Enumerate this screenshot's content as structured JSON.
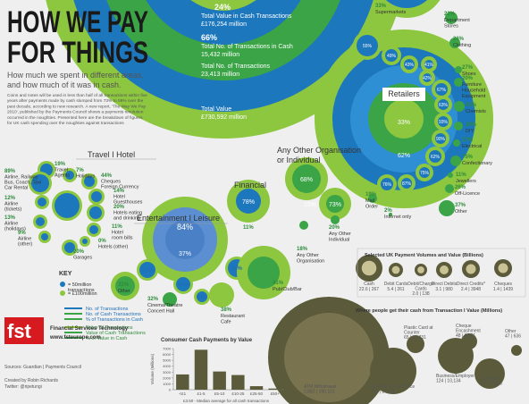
{
  "header": {
    "title_line1": "HOW WE PAY",
    "title_line2": "FOR THINGS",
    "subtitle_line1": "How much we spent in different areas,",
    "subtitle_line2": "and how much of it was in cash.",
    "body": [
      "Coins and notes will be used in less than half of all transactions within five",
      "years after payments made by cash slumped from 73% to 59% over the",
      "past decade, according to new research. A new report, 'The Way We Pay",
      "2010', published by the Payments Council shows a payments revolution",
      "occurred in the noughties. Presented here are the breakdown of figures",
      "for UK cash spending over the noughties against transactions"
    ]
  },
  "totals": {
    "cash_value_pct": "24%",
    "cash_value_label": "Total Value in Cash Transactions",
    "cash_value": "£176,254 million",
    "cash_no_pct": "66%",
    "cash_no_label": "Total No. of Transactions in Cash",
    "cash_no": "15,432 million",
    "total_no_label": "Total No. of Transactions",
    "total_no": "23,413 million",
    "total_value_label": "Total Value",
    "total_value": "£730,592 million"
  },
  "retail": {
    "title": "Retailers",
    "center": [
      "33%",
      "62%"
    ],
    "items": [
      {
        "pct": "33%",
        "label": [
          "Supermarkets"
        ]
      },
      {
        "pct": "22%",
        "label": [
          "Department",
          "Stores"
        ]
      },
      {
        "pct": "26%",
        "label": [
          "Clothing"
        ]
      },
      {
        "pct": "27%",
        "label": [
          "Shoes"
        ]
      },
      {
        "pct": "20%",
        "label": [
          "Furniture",
          "Household",
          "Equipment"
        ]
      },
      {
        "pct": "43%",
        "label": [
          "Chemists"
        ]
      },
      {
        "pct": "29%",
        "label": [
          "DIY"
        ]
      },
      {
        "pct": "17%",
        "label": [
          "Electrical"
        ]
      },
      {
        "pct": "75%",
        "label": [
          "Confectionary"
        ]
      },
      {
        "pct": "11%",
        "label": [
          "Jewellers"
        ]
      },
      {
        "pct": "26%",
        "label": [
          "Off-Licence"
        ]
      },
      {
        "pct": "37%",
        "label": [
          "Other"
        ]
      },
      {
        "pct": "19%",
        "label": [
          "Mail",
          "Order"
        ]
      },
      {
        "pct": "2%",
        "label": [
          "Internet only"
        ]
      }
    ],
    "inner": [
      "55%",
      "49%",
      "43%",
      "41%",
      "42%",
      "67%",
      "63%",
      "93%",
      "90%",
      "62%",
      "75%",
      "87%",
      "76%"
    ]
  },
  "travel": {
    "title": "Travel I Hotel",
    "items": [
      {
        "pct": "19%",
        "label": [
          "Travel",
          "Agents"
        ]
      },
      {
        "pct": "7%",
        "label": [
          "Holidays"
        ]
      },
      {
        "pct": "89%",
        "label": [
          "Airline, Railway",
          "Bus, Coach, Taxi",
          "Car Rental"
        ]
      },
      {
        "pct": "44%",
        "label": [
          "Cheques",
          "Foreign Currency"
        ]
      },
      {
        "pct": "12%",
        "label": [
          "Airline",
          "(tickets)"
        ]
      },
      {
        "pct": "14%",
        "label": [
          "Hotel",
          "Guesthouses"
        ]
      },
      {
        "pct": "20%",
        "label": [
          "Hotels eating",
          "and drinking"
        ]
      },
      {
        "pct": "11%",
        "label": [
          "Hotel",
          "room bills"
        ]
      },
      {
        "pct": "13%",
        "label": [
          "Airline",
          "(holidays)"
        ]
      },
      {
        "pct": "9%",
        "label": [
          "Airline",
          "(other)"
        ]
      },
      {
        "pct": "0%",
        "label": [
          "Hotels (other)"
        ]
      },
      {
        "pct": "20%",
        "label": [
          "Garages"
        ]
      }
    ]
  },
  "entertainment": {
    "title": "Entertainment I Leisure",
    "center": [
      "84%",
      "37%"
    ],
    "inner": [
      "82%",
      "65%",
      "94%",
      "89%"
    ],
    "items": [
      {
        "pct": "31%",
        "label": [
          "Other"
        ]
      },
      {
        "pct": "32%",
        "label": [
          "Cinema/Theatre",
          "Concert Hall"
        ]
      },
      {
        "pct": "38%",
        "label": [
          "Restaurant",
          "Cafe"
        ]
      },
      {
        "pct": "41%",
        "label": [
          "Pub/Club/Bar"
        ]
      }
    ]
  },
  "financial": {
    "title": "Financial",
    "center": "78%",
    "pct": "11%"
  },
  "other_org": {
    "title": [
      "Any Other Organisation",
      "or Individual"
    ],
    "inner": [
      "68%",
      "23%",
      "73%"
    ],
    "items": [
      {
        "pct": "18%",
        "label": [
          "Any Other",
          "Organisation"
        ]
      },
      {
        "pct": "20%",
        "label": [
          "Any Other",
          "Individual"
        ]
      }
    ]
  },
  "key": {
    "title": "KEY",
    "unit_transactions": [
      "= 50million",
      "transactions"
    ],
    "unit_value": "= £100million",
    "entries": [
      "No. of Transactions",
      "No. of Cash Transactions",
      "% of Transactions in Cash",
      "Value of Transactions",
      "Value of Cash Transactions",
      "% of Value in Cash"
    ]
  },
  "payments": {
    "title": "Selected UK Payment Volumes and Value (Billions)",
    "items": [
      {
        "label": [
          "Cash"
        ],
        "figures": "22.6 | 267"
      },
      {
        "label": [
          "Debit Cards"
        ],
        "figures": "5.4 | 261"
      },
      {
        "label": [
          "Debit/Charge",
          "Cards"
        ],
        "figures": "2.0 | 138"
      },
      {
        "label": [
          "Direct Debits"
        ],
        "figures": "3.1 | 980"
      },
      {
        "label": [
          "Direct Credits*"
        ],
        "figures": "2.4 | 3948"
      },
      {
        "label": [
          "Cheques"
        ],
        "figures": "1.4 | 1439"
      }
    ]
  },
  "cash_sources": {
    "title": "Where people get their cash from Transaction I Value (Millions)",
    "items": [
      {
        "label": [
          "ATM Withdrawal"
        ],
        "figures": "2,882 | 190,101"
      },
      {
        "label": [
          "Benefits in Post Office"
        ],
        "figures": "328 | 27,658"
      },
      {
        "label": [
          "Plastic Card at",
          "Counter"
        ],
        "figures": "65 | 12,731"
      },
      {
        "label": [
          "Business/Employer"
        ],
        "figures": "124 | 10,134"
      },
      {
        "label": [
          "Cheque",
          "Encashment"
        ],
        "figures": "48 | 8,581"
      },
      {
        "label": [
          "Cashback"
        ],
        "figures": "260 | 6,695"
      },
      {
        "label": [
          "Other"
        ],
        "figures": "47 | 636"
      }
    ]
  },
  "bar_chart": {
    "type": "bar",
    "title": "Consumer Cash Payments by Value",
    "y_label": "Volume (Millions)",
    "categories": [
      "<£1",
      "£1-5",
      "£5-10",
      "£10-25",
      "£25-50",
      "£50+"
    ],
    "values": [
      2600,
      6800,
      3100,
      2500,
      600,
      200
    ],
    "color": "#5b5b3b",
    "ylim": [
      0,
      7000
    ],
    "yticks": [
      0,
      1000,
      2000,
      3000,
      4000,
      5000,
      6000,
      7000
    ],
    "note": "£3.50 - Median average for all cash transactions"
  },
  "footer": {
    "logo": "fst",
    "company": "Financial Services Technology",
    "url": "www.fsteurope.com",
    "sources": "Sources: Guardian | Payments Council",
    "credit": "Created by Robin Richards",
    "twitter": "Twitter: @ripetungi"
  }
}
